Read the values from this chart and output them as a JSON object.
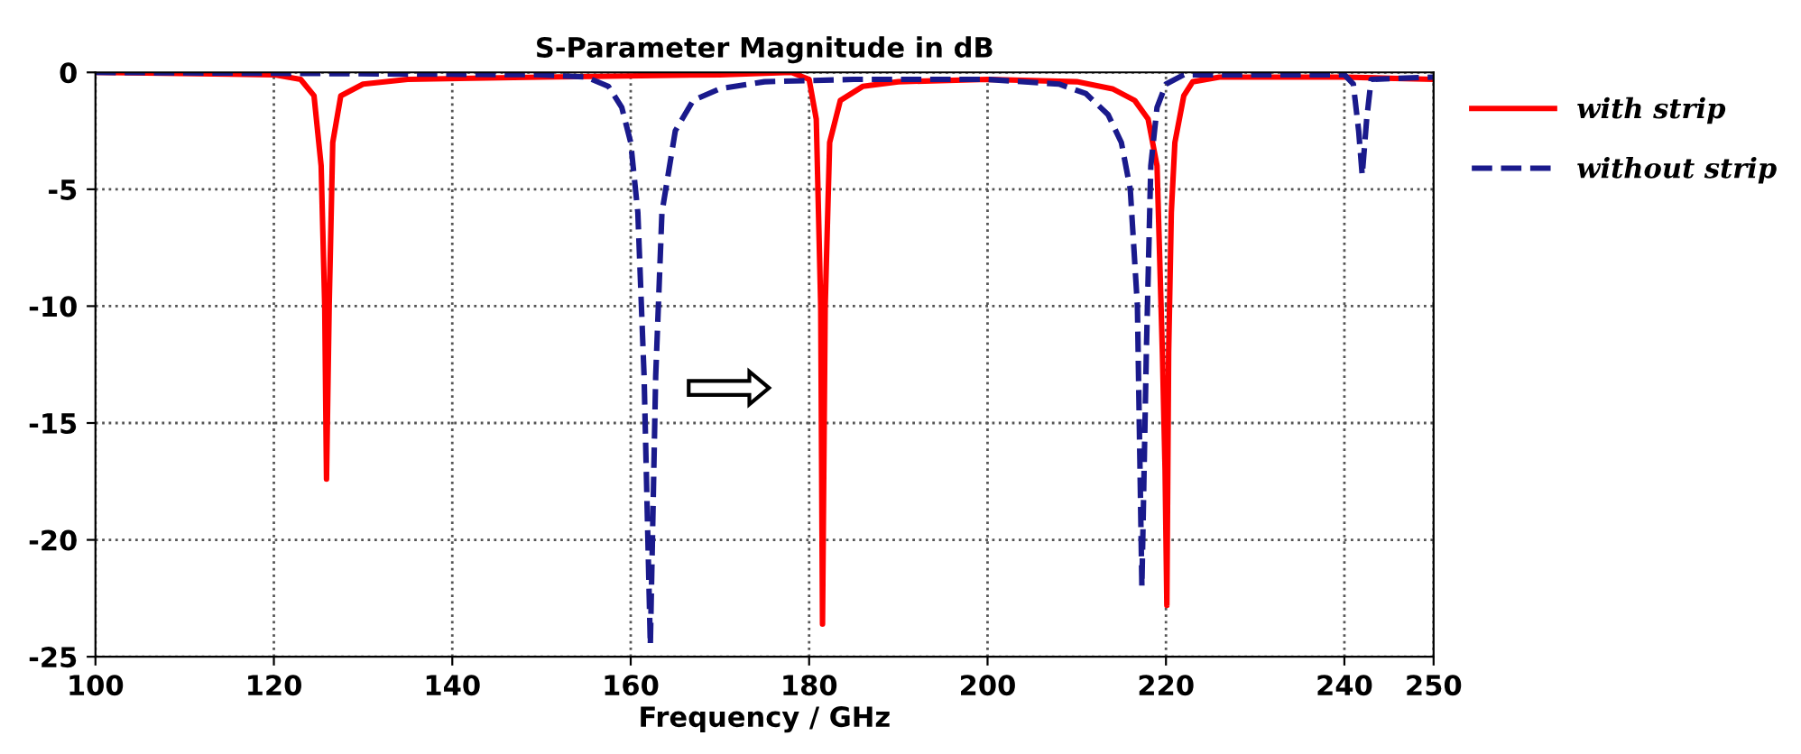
{
  "chart_data": {
    "type": "line",
    "title": "S-Parameter Magnitude in dB",
    "xlabel": "Frequency / GHz",
    "xlim": [
      100,
      250
    ],
    "xticks": [
      100,
      120,
      140,
      160,
      180,
      200,
      220,
      240,
      250
    ],
    "ylim": [
      -25,
      0
    ],
    "yticks": [
      0,
      -5,
      -10,
      -15,
      -20,
      -25
    ],
    "grid": true,
    "legend": "top right",
    "series": [
      {
        "name": "with strip",
        "color": "#ff0000",
        "line_style": "solid",
        "x": [
          100,
          120,
          123,
          124.5,
          125.3,
          125.7,
          125.9,
          126.2,
          126.6,
          127.5,
          130,
          135,
          150,
          170,
          178,
          180,
          180.8,
          181.3,
          181.5,
          181.8,
          182.3,
          183.5,
          186,
          190,
          200,
          210,
          214,
          216.5,
          218,
          219,
          219.6,
          219.9,
          220.1,
          220.3,
          220.6,
          221,
          222,
          223,
          226,
          240,
          250
        ],
        "values": [
          0,
          -0.1,
          -0.3,
          -1,
          -4,
          -10,
          -17.4,
          -10,
          -3,
          -1,
          -0.5,
          -0.3,
          -0.2,
          -0.1,
          0,
          -0.3,
          -2,
          -10,
          -23.6,
          -10,
          -3,
          -1.2,
          -0.6,
          -0.4,
          -0.3,
          -0.4,
          -0.7,
          -1.2,
          -2,
          -4,
          -12,
          -17,
          -22.8,
          -12,
          -6,
          -3,
          -1,
          -0.4,
          -0.2,
          -0.2,
          -0.3
        ]
      },
      {
        "name": "without strip",
        "color": "#1a1a8c",
        "line_style": "dashed",
        "x": [
          100,
          150,
          155,
          157.5,
          159,
          160,
          160.8,
          161.5,
          162.2,
          162.8,
          163.5,
          165,
          167,
          170,
          175,
          185,
          200,
          208,
          211,
          213.5,
          215,
          216,
          216.8,
          217.3,
          217.8,
          218.3,
          219,
          220,
          222,
          240,
          241,
          241.6,
          242,
          242.5,
          243,
          250
        ],
        "values": [
          0,
          -0.1,
          -0.2,
          -0.6,
          -1.5,
          -3,
          -6,
          -13,
          -24.5,
          -13,
          -6,
          -2.5,
          -1.2,
          -0.7,
          -0.4,
          -0.3,
          -0.3,
          -0.5,
          -0.9,
          -1.8,
          -3,
          -5,
          -10,
          -22,
          -12,
          -4,
          -1.5,
          -0.5,
          -0.1,
          -0.1,
          -0.5,
          -2.5,
          -4.4,
          -2,
          -0.3,
          -0.2
        ]
      }
    ]
  }
}
